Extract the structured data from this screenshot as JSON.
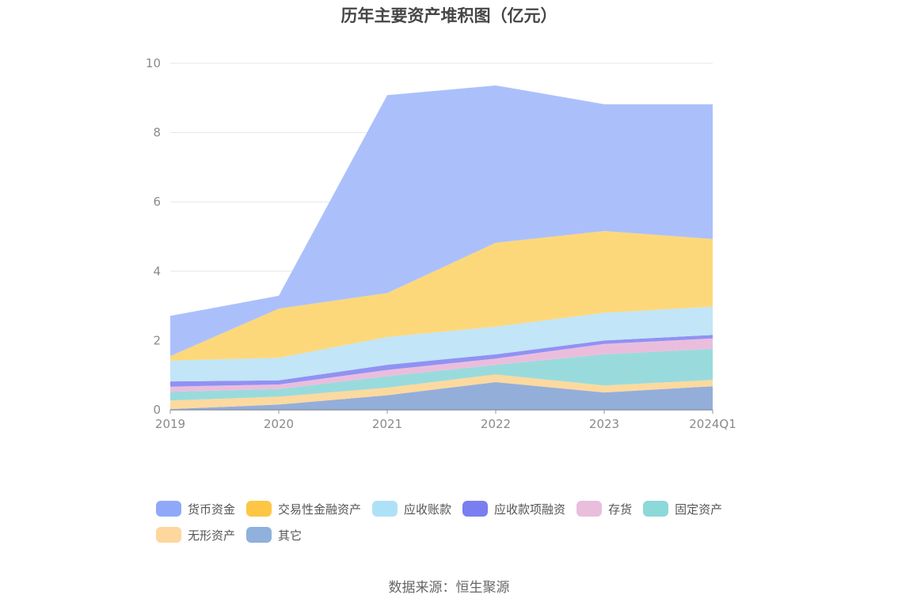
{
  "chart_data": {
    "type": "area",
    "stacked": true,
    "title": "历年主要资产堆积图（亿元）",
    "categories": [
      "2019",
      "2020",
      "2021",
      "2022",
      "2023",
      "2024Q1"
    ],
    "ylim": [
      0,
      10
    ],
    "yticks": [
      0,
      2,
      4,
      6,
      8,
      10
    ],
    "grid": true,
    "legend_position": "bottom",
    "series": [
      {
        "name": "其它",
        "color": "#8eaad8",
        "values": [
          0.02,
          0.15,
          0.42,
          0.8,
          0.5,
          0.68
        ]
      },
      {
        "name": "无形资产",
        "color": "#fcd79a",
        "values": [
          0.25,
          0.23,
          0.22,
          0.22,
          0.2,
          0.18
        ]
      },
      {
        "name": "固定资产",
        "color": "#93d9da",
        "values": [
          0.25,
          0.22,
          0.33,
          0.28,
          0.9,
          0.9
        ]
      },
      {
        "name": "存货",
        "color": "#eab9db",
        "values": [
          0.15,
          0.13,
          0.18,
          0.18,
          0.3,
          0.3
        ]
      },
      {
        "name": "应收款项融资",
        "color": "#8a8cf2",
        "values": [
          0.15,
          0.12,
          0.15,
          0.12,
          0.1,
          0.1
        ]
      },
      {
        "name": "应收账款",
        "color": "#bfe4f7",
        "values": [
          0.6,
          0.65,
          0.8,
          0.8,
          0.8,
          0.82
        ]
      },
      {
        "name": "交易性金融资产",
        "color": "#fdd673",
        "values": [
          0.13,
          1.42,
          1.27,
          2.42,
          2.36,
          1.95
        ]
      },
      {
        "name": "货币资金",
        "color": "#a7bdfb",
        "values": [
          1.16,
          0.37,
          5.71,
          4.54,
          3.66,
          3.89
        ]
      }
    ]
  },
  "legend": {
    "items": [
      {
        "label": "货币资金",
        "color": "#8fa8f9"
      },
      {
        "label": "交易性金融资产",
        "color": "#fdc645"
      },
      {
        "label": "应收账款",
        "color": "#aee1f8"
      },
      {
        "label": "应收款项融资",
        "color": "#7a7ef0"
      },
      {
        "label": "存货",
        "color": "#e9bedc"
      },
      {
        "label": "固定资产",
        "color": "#8dd8d9"
      },
      {
        "label": "无形资产",
        "color": "#fdd79e"
      },
      {
        "label": "其它",
        "color": "#8fb1dc"
      }
    ]
  },
  "footer": {
    "source": "数据来源：恒生聚源"
  }
}
